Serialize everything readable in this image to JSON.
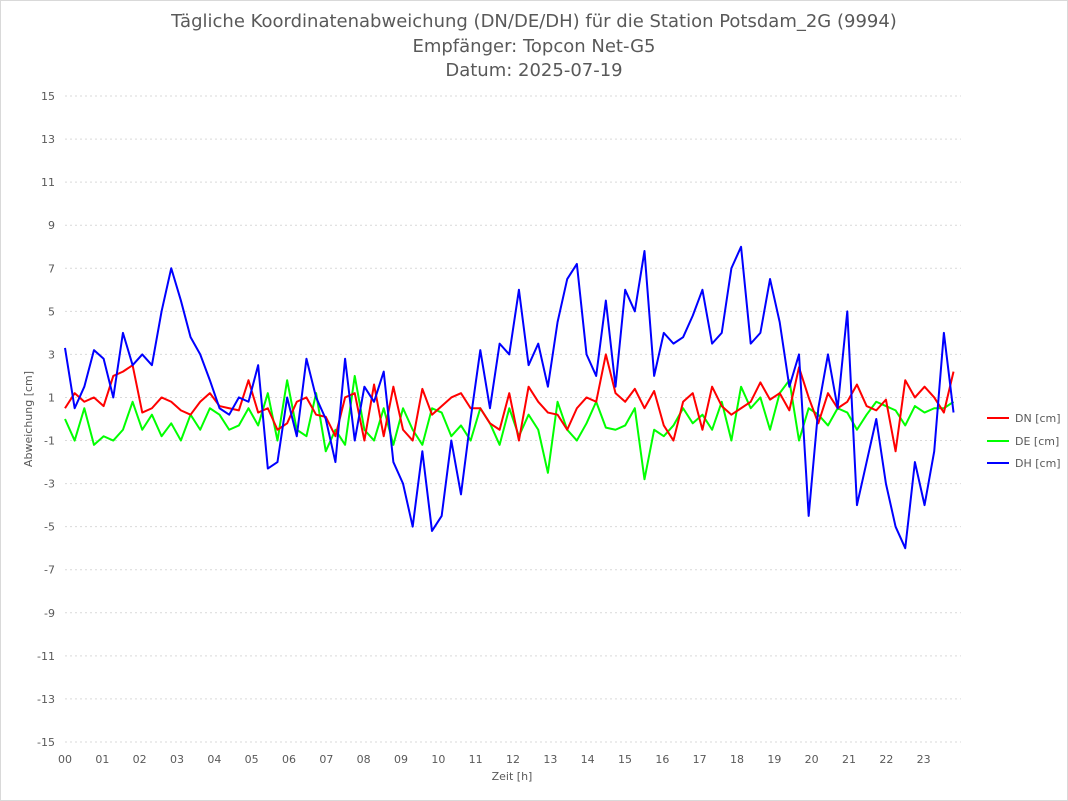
{
  "chart": {
    "title_lines": [
      "Tägliche Koordinatenabweichung (DN/DE/DH) für die Station Potsdam_2G (9994)",
      "Empfänger: Topcon Net-G5",
      "Datum: 2025-07-19"
    ],
    "colors": {
      "grid": "#d9d9d9",
      "text": "#595959",
      "DN": "#ff0000",
      "DE": "#00ff00",
      "DH": "#0000ff"
    }
  },
  "chart_data": {
    "type": "line",
    "title": "Tägliche Koordinatenabweichung (DN/DE/DH) für die Station Potsdam_2G (9994)",
    "subtitle": [
      "Empfänger: Topcon Net-G5",
      "Datum: 2025-07-19"
    ],
    "xlabel": "Zeit [h]",
    "ylabel": "Abweichung [cm]",
    "xlim": [
      0,
      24
    ],
    "ylim": [
      -15,
      15
    ],
    "x_tick_labels": [
      "00",
      "01",
      "02",
      "03",
      "04",
      "05",
      "06",
      "07",
      "08",
      "09",
      "10",
      "11",
      "12",
      "13",
      "14",
      "15",
      "16",
      "17",
      "18",
      "19",
      "20",
      "21",
      "22",
      "23"
    ],
    "y_ticks": [
      15,
      13,
      11,
      9,
      7,
      5,
      3,
      1,
      -1,
      -3,
      -5,
      -7,
      -9,
      -11,
      -13,
      -15
    ],
    "grid": "horizontal dotted",
    "legend_position": "right",
    "sample_interval_h": 0.5,
    "series": [
      {
        "name": "DN [cm]",
        "color": "#ff0000",
        "values": [
          0.5,
          1.2,
          0.8,
          1.0,
          0.6,
          2.0,
          2.2,
          2.5,
          0.3,
          0.5,
          1.0,
          0.8,
          0.4,
          0.2,
          0.8,
          1.2,
          0.6,
          0.5,
          0.4,
          1.8,
          0.3,
          0.5,
          -0.5,
          -0.2,
          0.8,
          1.0,
          0.2,
          0.1,
          -0.8,
          1.0,
          1.2,
          -1.0,
          1.6,
          -0.8,
          1.5,
          -0.5,
          -1.0,
          1.4,
          0.2,
          0.6,
          1.0,
          1.2,
          0.5,
          0.5,
          -0.2,
          -0.5,
          1.2,
          -1.0,
          1.5,
          0.8,
          0.3,
          0.2,
          -0.5,
          0.5,
          1.0,
          0.8,
          3.0,
          1.2,
          0.8,
          1.4,
          0.5,
          1.3,
          -0.3,
          -1.0,
          0.8,
          1.2,
          -0.5,
          1.5,
          0.6,
          0.2,
          0.5,
          0.8,
          1.7,
          0.9,
          1.2,
          0.4,
          2.4,
          1.0,
          -0.2,
          1.2,
          0.5,
          0.8,
          1.6,
          0.6,
          0.4,
          0.9,
          -1.5,
          1.8,
          1.0,
          1.5,
          1.0,
          0.3,
          2.2
        ]
      },
      {
        "name": "DE [cm]",
        "color": "#00ff00",
        "values": [
          0.0,
          -1.0,
          0.5,
          -1.2,
          -0.8,
          -1.0,
          -0.5,
          0.8,
          -0.5,
          0.2,
          -0.8,
          -0.2,
          -1.0,
          0.2,
          -0.5,
          0.5,
          0.2,
          -0.5,
          -0.3,
          0.5,
          -0.3,
          1.2,
          -1.0,
          1.8,
          -0.5,
          -0.8,
          1.2,
          -1.5,
          -0.5,
          -1.2,
          2.0,
          -0.5,
          -1.0,
          0.5,
          -1.2,
          0.5,
          -0.5,
          -1.2,
          0.5,
          0.3,
          -0.8,
          -0.3,
          -1.0,
          0.5,
          -0.2,
          -1.2,
          0.5,
          -0.8,
          0.2,
          -0.5,
          -2.5,
          0.8,
          -0.5,
          -1.0,
          -0.2,
          0.8,
          -0.4,
          -0.5,
          -0.3,
          0.5,
          -2.8,
          -0.5,
          -0.8,
          -0.3,
          0.5,
          -0.2,
          0.2,
          -0.5,
          0.8,
          -1.0,
          1.5,
          0.5,
          1.0,
          -0.5,
          1.2,
          1.8,
          -1.0,
          0.5,
          0.2,
          -0.3,
          0.5,
          0.3,
          -0.5,
          0.2,
          0.8,
          0.6,
          0.4,
          -0.3,
          0.6,
          0.3,
          0.5,
          0.5,
          0.8
        ]
      },
      {
        "name": "DH [cm]",
        "color": "#0000ff",
        "values": [
          3.3,
          0.5,
          1.5,
          3.2,
          2.8,
          1.0,
          4.0,
          2.5,
          3.0,
          2.5,
          5.0,
          7.0,
          5.5,
          3.8,
          3.0,
          1.8,
          0.5,
          0.2,
          1.0,
          0.8,
          2.5,
          -2.3,
          -2.0,
          1.0,
          -0.8,
          2.8,
          1.0,
          0.0,
          -2.0,
          2.8,
          -1.0,
          1.5,
          0.8,
          2.2,
          -2.0,
          -3.0,
          -5.0,
          -1.5,
          -5.2,
          -4.5,
          -1.0,
          -3.5,
          0.0,
          3.2,
          0.5,
          3.5,
          3.0,
          6.0,
          2.5,
          3.5,
          1.5,
          4.5,
          6.5,
          7.2,
          3.0,
          2.0,
          5.5,
          1.5,
          6.0,
          5.0,
          7.8,
          2.0,
          4.0,
          3.5,
          3.8,
          4.8,
          6.0,
          3.5,
          4.0,
          7.0,
          8.0,
          3.5,
          4.0,
          6.5,
          4.5,
          1.5,
          3.0,
          -4.5,
          0.5,
          3.0,
          0.5,
          5.0,
          -4.0,
          -2.0,
          0.0,
          -3.0,
          -5.0,
          -6.0,
          -2.0,
          -4.0,
          -1.5,
          4.0,
          0.3
        ]
      }
    ]
  }
}
